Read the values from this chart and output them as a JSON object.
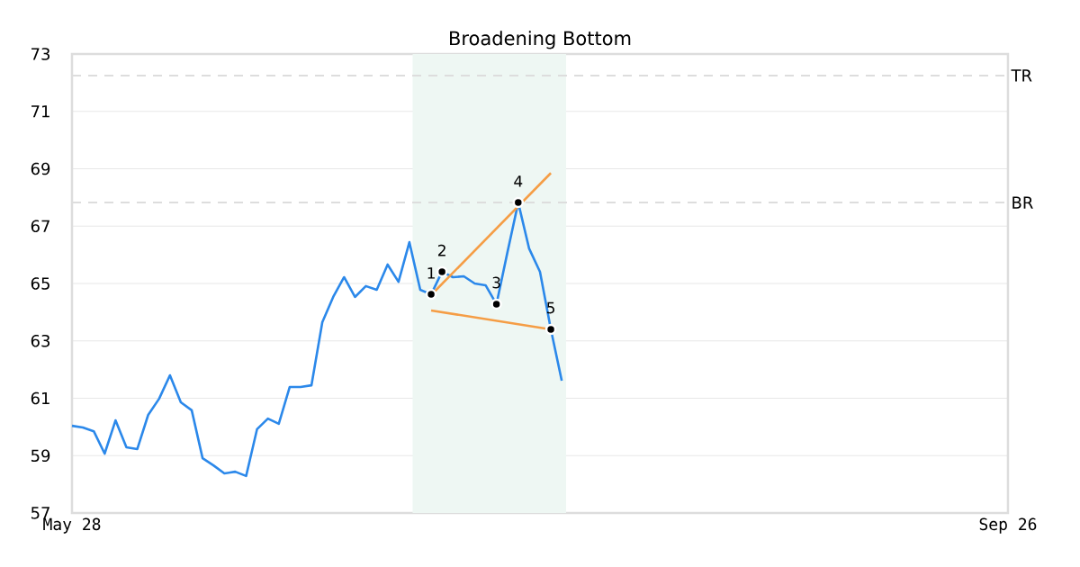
{
  "chart_data": {
    "type": "line",
    "title": "Broadening Bottom",
    "categories": [
      "May 28",
      null,
      null,
      null,
      null,
      null,
      null,
      null,
      null,
      null,
      null,
      null,
      null,
      null,
      null,
      null,
      null,
      null,
      null,
      null,
      null,
      null,
      null,
      null,
      null,
      null,
      null,
      null,
      null,
      null,
      null,
      null,
      null,
      null,
      null,
      null,
      null,
      null,
      null,
      null,
      null,
      null,
      null,
      null,
      null,
      null,
      null,
      null,
      null,
      null,
      null,
      null,
      null,
      null,
      null,
      null,
      null,
      null,
      null,
      null,
      null,
      null,
      null,
      null,
      null,
      null,
      null,
      null,
      null,
      null,
      null,
      null,
      null,
      null,
      null,
      null,
      null,
      null,
      null,
      null,
      null,
      null,
      null,
      null,
      null,
      null,
      "Sep 26"
    ],
    "series": [
      {
        "color": "#2b88ea",
        "values": [
          60.04,
          59.98,
          59.85,
          59.07,
          60.23,
          59.29,
          59.23,
          60.42,
          60.98,
          61.8,
          60.86,
          60.58,
          58.91,
          58.66,
          58.38,
          58.44,
          58.29,
          59.92,
          60.29,
          60.11,
          61.39,
          61.39,
          61.45,
          63.65,
          64.53,
          65.22,
          64.53,
          64.91,
          64.78,
          65.66,
          65.06,
          66.44,
          64.78,
          64.62,
          65.41,
          65.22,
          65.25,
          65.0,
          64.94,
          64.28,
          66.07,
          67.82,
          66.22,
          65.41,
          63.4,
          61.61,
          null,
          null,
          null,
          null,
          null,
          null,
          null,
          null,
          null,
          null,
          null,
          null,
          null,
          null,
          null,
          null,
          null,
          null,
          null,
          null,
          null,
          null,
          null,
          null,
          null,
          null,
          null,
          null,
          null,
          null,
          null,
          null,
          null,
          null,
          null,
          null,
          null,
          null,
          null,
          null,
          null
        ]
      },
      {
        "type": "line",
        "color": "#f59d45",
        "values": [
          null,
          null,
          null,
          null,
          null,
          null,
          null,
          null,
          null,
          null,
          null,
          null,
          null,
          null,
          null,
          null,
          null,
          null,
          null,
          null,
          null,
          null,
          null,
          null,
          null,
          null,
          null,
          null,
          null,
          null,
          null,
          null,
          null,
          64.6,
          null,
          null,
          null,
          null,
          null,
          null,
          null,
          null,
          null,
          null,
          68.85,
          null,
          null,
          null,
          null,
          null,
          null,
          null,
          null,
          null,
          null,
          null,
          null,
          null,
          null,
          null,
          null,
          null,
          null,
          null,
          null,
          null,
          null,
          null,
          null,
          null,
          null,
          null,
          null,
          null,
          null,
          null,
          null,
          null,
          null,
          null,
          null,
          null,
          null,
          null,
          null,
          null,
          null
        ]
      },
      {
        "type": "line",
        "color": "#f59d45",
        "values": [
          null,
          null,
          null,
          null,
          null,
          null,
          null,
          null,
          null,
          null,
          null,
          null,
          null,
          null,
          null,
          null,
          null,
          null,
          null,
          null,
          null,
          null,
          null,
          null,
          null,
          null,
          null,
          null,
          null,
          null,
          null,
          null,
          null,
          64.06,
          null,
          null,
          null,
          null,
          null,
          null,
          null,
          null,
          null,
          null,
          63.4,
          null,
          null,
          null,
          null,
          null,
          null,
          null,
          null,
          null,
          null,
          null,
          null,
          null,
          null,
          null,
          null,
          null,
          null,
          null,
          null,
          null,
          null,
          null,
          null,
          null,
          null,
          null,
          null,
          null,
          null,
          null,
          null,
          null,
          null,
          null,
          null,
          null,
          null,
          null,
          null,
          null,
          null
        ]
      },
      {
        "type": "scatter",
        "color": "#000000",
        "values": [
          null,
          null,
          null,
          null,
          null,
          null,
          null,
          null,
          null,
          null,
          null,
          null,
          null,
          null,
          null,
          null,
          null,
          null,
          null,
          null,
          null,
          null,
          null,
          null,
          null,
          null,
          null,
          null,
          null,
          null,
          null,
          null,
          null,
          64.62,
          65.41,
          null,
          null,
          null,
          null,
          64.28,
          null,
          67.82,
          null,
          null,
          63.4,
          null,
          null,
          null,
          null,
          null,
          null,
          null,
          null,
          null,
          null,
          null,
          null,
          null,
          null,
          null,
          null,
          null,
          null,
          null,
          null,
          null,
          null,
          null,
          null,
          null,
          null,
          null,
          null,
          null,
          null,
          null,
          null,
          null,
          null,
          null,
          null,
          null,
          null,
          null,
          null,
          null,
          null
        ]
      }
    ],
    "ylim": [
      57,
      73
    ],
    "yticks": [
      57,
      59,
      61,
      63,
      65,
      67,
      69,
      71,
      73
    ],
    "grid": "y",
    "ref_lines": [
      {
        "axis": "y",
        "value": 72.25,
        "label": "TR",
        "color": "#dddddd",
        "line_style": "dashed"
      },
      {
        "axis": "y",
        "value": 67.82,
        "label": "BR",
        "color": "#dddddd",
        "line_style": "dashed"
      }
    ],
    "annotations": [
      "1",
      "2",
      "3",
      "4",
      "5"
    ]
  }
}
